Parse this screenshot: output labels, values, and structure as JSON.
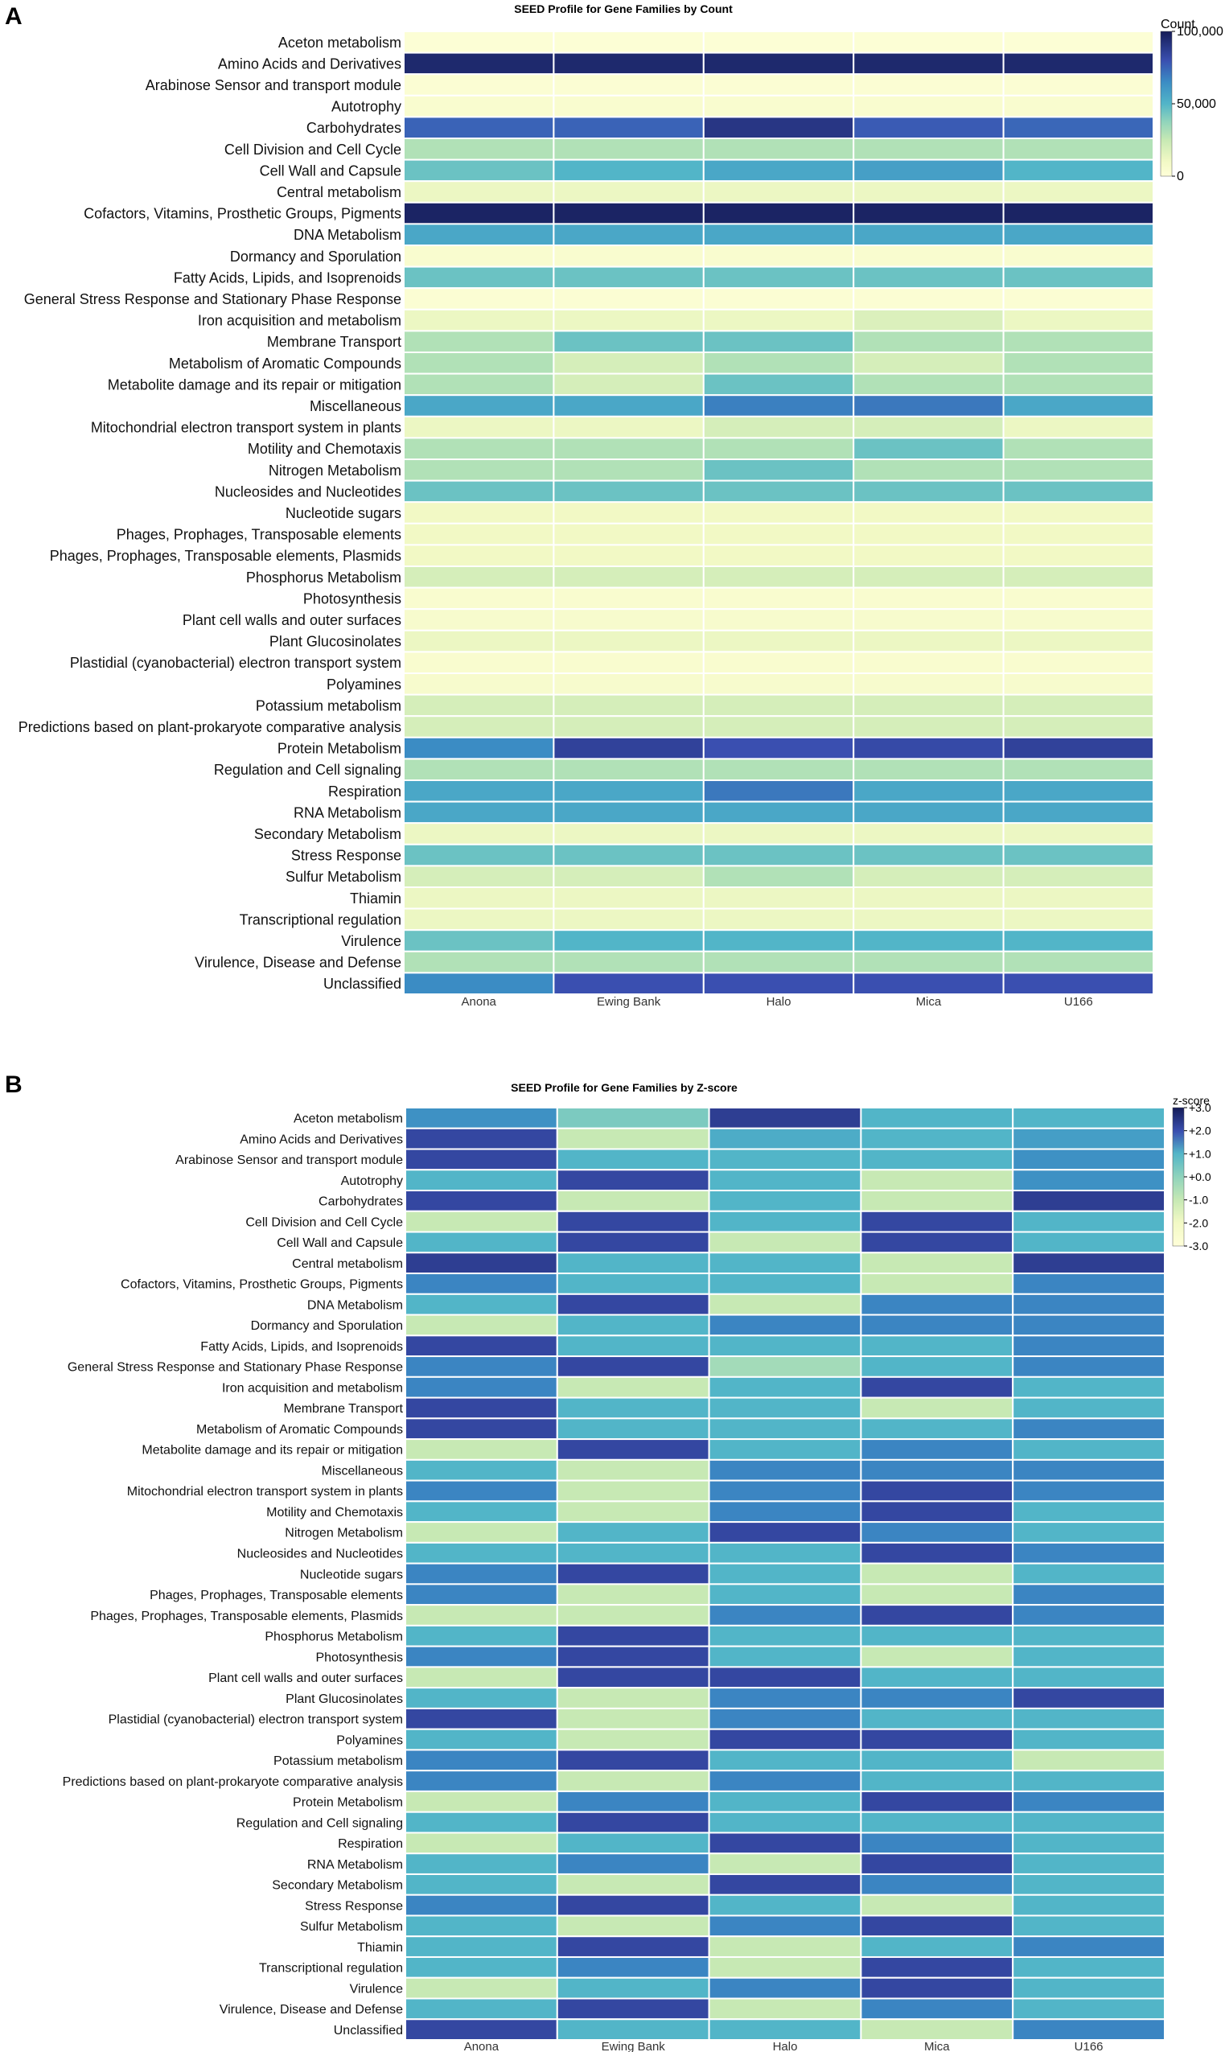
{
  "chart_data": [
    {
      "type": "heatmap",
      "panel_label": "A",
      "title": "SEED Profile for Gene Families by Count",
      "columns": [
        "Anona",
        "Ewing Bank",
        "Halo",
        "Mica",
        "U166"
      ],
      "rows": [
        "Aceton metabolism",
        "Amino Acids and Derivatives",
        "Arabinose Sensor and transport module",
        "Autotrophy",
        "Carbohydrates",
        "Cell Division and Cell Cycle",
        "Cell Wall and Capsule",
        "Central metabolism",
        "Cofactors, Vitamins, Prosthetic Groups, Pigments",
        "DNA Metabolism",
        "Dormancy and Sporulation",
        "Fatty Acids, Lipids, and Isoprenoids",
        "General Stress Response and Stationary Phase Response",
        "Iron acquisition and metabolism",
        "Membrane Transport",
        "Metabolism of Aromatic Compounds",
        "Metabolite damage and its repair or mitigation",
        "Miscellaneous",
        "Mitochondrial electron transport system in plants",
        "Motility and Chemotaxis",
        "Nitrogen Metabolism",
        "Nucleosides and Nucleotides",
        "Nucleotide sugars",
        "Phages, Prophages, Transposable elements",
        "Phages, Prophages, Transposable elements, Plasmids",
        "Phosphorus Metabolism",
        "Photosynthesis",
        "Plant cell walls and outer surfaces",
        "Plant Glucosinolates",
        "Plastidial (cyanobacterial) electron transport system",
        "Polyamines",
        "Potassium metabolism",
        "Predictions based on plant-prokaryote comparative analysis",
        "Protein Metabolism",
        "Regulation and Cell signaling",
        "Respiration",
        "RNA Metabolism",
        "Secondary Metabolism",
        "Stress Response",
        "Sulfur Metabolism",
        "Thiamin",
        "Transcriptional regulation",
        "Virulence",
        "Virulence, Disease and Defense",
        "Unclassified"
      ],
      "values": [
        [
          2000,
          2000,
          2000,
          2000,
          2000
        ],
        [
          95000,
          95000,
          95000,
          95000,
          95000
        ],
        [
          3000,
          3000,
          3000,
          3000,
          3000
        ],
        [
          5000,
          5000,
          5000,
          5000,
          5000
        ],
        [
          75000,
          75000,
          90000,
          77000,
          74000
        ],
        [
          30000,
          30000,
          30000,
          30000,
          30000
        ],
        [
          45000,
          50000,
          55000,
          58000,
          50000
        ],
        [
          12000,
          12000,
          12000,
          12000,
          12000
        ],
        [
          97000,
          97000,
          97000,
          97000,
          97000
        ],
        [
          55000,
          55000,
          55000,
          55000,
          55000
        ],
        [
          5000,
          5000,
          5000,
          5000,
          5000
        ],
        [
          45000,
          45000,
          45000,
          45000,
          45000
        ],
        [
          3000,
          3000,
          3000,
          3000,
          3000
        ],
        [
          12000,
          12000,
          12000,
          18000,
          12000
        ],
        [
          30000,
          45000,
          45000,
          30000,
          30000
        ],
        [
          30000,
          20000,
          30000,
          20000,
          30000
        ],
        [
          30000,
          20000,
          45000,
          30000,
          30000
        ],
        [
          55000,
          55000,
          68000,
          70000,
          55000
        ],
        [
          12000,
          12000,
          20000,
          20000,
          12000
        ],
        [
          30000,
          30000,
          30000,
          45000,
          30000
        ],
        [
          30000,
          30000,
          45000,
          30000,
          30000
        ],
        [
          45000,
          45000,
          45000,
          45000,
          45000
        ],
        [
          10000,
          10000,
          10000,
          10000,
          10000
        ],
        [
          10000,
          10000,
          10000,
          10000,
          10000
        ],
        [
          10000,
          10000,
          10000,
          10000,
          10000
        ],
        [
          20000,
          20000,
          20000,
          20000,
          20000
        ],
        [
          5000,
          5000,
          5000,
          5000,
          5000
        ],
        [
          6000,
          6000,
          6000,
          6000,
          6000
        ],
        [
          12000,
          12000,
          12000,
          12000,
          12000
        ],
        [
          5000,
          5000,
          5000,
          5000,
          5000
        ],
        [
          6000,
          6000,
          6000,
          6000,
          6000
        ],
        [
          20000,
          20000,
          20000,
          20000,
          20000
        ],
        [
          20000,
          20000,
          20000,
          20000,
          20000
        ],
        [
          65000,
          85000,
          80000,
          82000,
          85000
        ],
        [
          30000,
          30000,
          30000,
          30000,
          30000
        ],
        [
          55000,
          55000,
          70000,
          55000,
          55000
        ],
        [
          55000,
          55000,
          55000,
          55000,
          55000
        ],
        [
          12000,
          12000,
          12000,
          12000,
          12000
        ],
        [
          45000,
          45000,
          45000,
          45000,
          45000
        ],
        [
          20000,
          20000,
          30000,
          20000,
          20000
        ],
        [
          12000,
          12000,
          12000,
          12000,
          12000
        ],
        [
          12000,
          12000,
          12000,
          12000,
          12000
        ],
        [
          45000,
          50000,
          50000,
          50000,
          50000
        ],
        [
          30000,
          30000,
          30000,
          30000,
          30000
        ],
        [
          65000,
          80000,
          80000,
          80000,
          80000
        ]
      ],
      "zlim": [
        0,
        100000
      ],
      "colorbar": {
        "title": "Count",
        "ticks": [
          0,
          50000,
          100000
        ],
        "tick_labels": [
          "0",
          "50,000",
          "100,000"
        ]
      }
    },
    {
      "type": "heatmap",
      "panel_label": "B",
      "title": "SEED Profile for Gene Families by Z-score",
      "columns": [
        "Anona",
        "Ewing Bank",
        "Halo",
        "Mica",
        "U166"
      ],
      "rows": [
        "Aceton metabolism",
        "Amino Acids and Derivatives",
        "Arabinose Sensor and transport module",
        "Autotrophy",
        "Carbohydrates",
        "Cell Division and Cell Cycle",
        "Cell Wall and Capsule",
        "Central metabolism",
        "Cofactors, Vitamins, Prosthetic Groups, Pigments",
        "DNA Metabolism",
        "Dormancy and Sporulation",
        "Fatty Acids, Lipids, and Isoprenoids",
        "General Stress Response and Stationary Phase Response",
        "Iron acquisition and metabolism",
        "Membrane Transport",
        "Metabolism of Aromatic Compounds",
        "Metabolite damage and its repair or mitigation",
        "Miscellaneous",
        "Mitochondrial electron transport system in plants",
        "Motility and Chemotaxis",
        "Nitrogen Metabolism",
        "Nucleosides and Nucleotides",
        "Nucleotide sugars",
        "Phages, Prophages, Transposable elements",
        "Phages, Prophages, Transposable elements, Plasmids",
        "Phosphorus Metabolism",
        "Photosynthesis",
        "Plant cell walls and outer surfaces",
        "Plant Glucosinolates",
        "Plastidial (cyanobacterial) electron transport system",
        "Polyamines",
        "Potassium metabolism",
        "Predictions based on plant-prokaryote comparative analysis",
        "Protein Metabolism",
        "Regulation and Cell signaling",
        "Respiration",
        "RNA Metabolism",
        "Secondary Metabolism",
        "Stress Response",
        "Sulfur Metabolism",
        "Thiamin",
        "Transcriptional regulation",
        "Virulence",
        "Virulence, Disease and Defense",
        "Unclassified"
      ],
      "values": [
        [
          0.8,
          -0.5,
          2.2,
          0.0,
          0.0
        ],
        [
          2.0,
          -1.5,
          0.2,
          0.0,
          0.5
        ],
        [
          2.0,
          0.0,
          0.0,
          0.0,
          0.8
        ],
        [
          0.0,
          2.0,
          0.0,
          -1.5,
          0.8
        ],
        [
          2.0,
          -1.5,
          0.0,
          -1.5,
          2.2
        ],
        [
          -1.5,
          2.0,
          0.0,
          2.0,
          0.0
        ],
        [
          0.0,
          2.0,
          -1.5,
          2.0,
          0.0
        ],
        [
          2.2,
          0.0,
          0.0,
          -1.5,
          2.2
        ],
        [
          1.0,
          0.0,
          0.0,
          -1.5,
          1.0
        ],
        [
          0.0,
          2.0,
          -1.5,
          1.0,
          1.0
        ],
        [
          -1.5,
          0.0,
          1.0,
          1.0,
          1.0
        ],
        [
          2.0,
          0.0,
          0.0,
          0.0,
          1.0
        ],
        [
          1.0,
          2.0,
          -1.0,
          0.0,
          1.0
        ],
        [
          1.0,
          -1.5,
          0.0,
          2.0,
          0.0
        ],
        [
          2.0,
          0.0,
          0.0,
          -1.5,
          0.0
        ],
        [
          2.0,
          0.0,
          0.0,
          0.0,
          1.0
        ],
        [
          -1.5,
          2.0,
          0.0,
          1.0,
          0.0
        ],
        [
          0.0,
          -1.5,
          1.0,
          1.0,
          1.0
        ],
        [
          1.0,
          -1.5,
          1.0,
          2.0,
          1.0
        ],
        [
          0.0,
          -1.5,
          1.0,
          2.0,
          0.0
        ],
        [
          -1.5,
          0.0,
          2.0,
          1.0,
          0.0
        ],
        [
          0.0,
          0.0,
          0.0,
          2.0,
          1.0
        ],
        [
          1.0,
          2.0,
          0.0,
          -1.5,
          0.0
        ],
        [
          1.0,
          -1.5,
          0.0,
          -1.5,
          1.0
        ],
        [
          -1.5,
          -1.5,
          1.0,
          2.0,
          1.0
        ],
        [
          0.0,
          2.0,
          0.0,
          0.0,
          0.0
        ],
        [
          1.0,
          2.0,
          0.0,
          -1.5,
          0.0
        ],
        [
          -1.5,
          2.0,
          2.0,
          0.0,
          0.0
        ],
        [
          0.0,
          -1.5,
          1.0,
          1.0,
          2.0
        ],
        [
          2.0,
          -1.5,
          1.0,
          0.0,
          0.0
        ],
        [
          0.0,
          -1.5,
          2.0,
          2.0,
          0.0
        ],
        [
          1.0,
          2.0,
          0.0,
          0.0,
          -1.5
        ],
        [
          1.0,
          -1.5,
          1.0,
          0.0,
          0.0
        ],
        [
          -1.5,
          1.0,
          0.0,
          2.0,
          1.0
        ],
        [
          0.0,
          2.0,
          0.0,
          0.0,
          0.0
        ],
        [
          -1.5,
          0.0,
          2.0,
          1.0,
          0.0
        ],
        [
          0.0,
          1.0,
          -1.5,
          2.0,
          0.0
        ],
        [
          0.0,
          -1.5,
          2.0,
          1.0,
          0.0
        ],
        [
          1.0,
          2.0,
          0.0,
          -1.5,
          0.0
        ],
        [
          0.0,
          -1.5,
          1.0,
          2.0,
          0.0
        ],
        [
          0.0,
          2.0,
          -1.5,
          0.0,
          1.0
        ],
        [
          0.0,
          1.0,
          -1.5,
          2.0,
          0.0
        ],
        [
          -1.5,
          0.0,
          1.0,
          2.0,
          0.0
        ],
        [
          0.0,
          2.0,
          -1.5,
          1.0,
          0.0
        ],
        [
          2.0,
          0.0,
          0.0,
          -1.5,
          1.0
        ]
      ],
      "zlim": [
        -3.0,
        3.0
      ],
      "colorbar": {
        "title": "z-score",
        "ticks": [
          3,
          2,
          1,
          0,
          -1,
          -2,
          -3
        ],
        "tick_labels": [
          "+3.0",
          "+2.0",
          "+1.0",
          "+0.0",
          "-1.0",
          "-2.0",
          "-3.0"
        ]
      }
    }
  ]
}
